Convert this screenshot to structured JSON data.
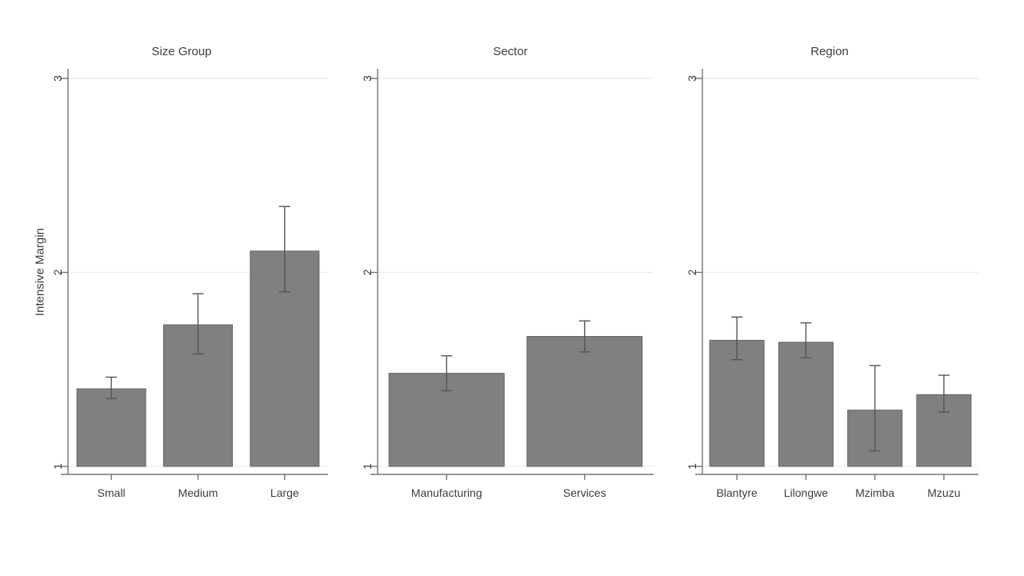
{
  "page": {
    "background": "#ffffff"
  },
  "chart_data": [
    {
      "type": "bar",
      "title": "Size Group",
      "categories": [
        "Small",
        "Medium",
        "Large"
      ],
      "values": [
        1.4,
        1.73,
        2.11
      ],
      "ci_low": [
        1.35,
        1.58,
        1.9
      ],
      "ci_high": [
        1.46,
        1.89,
        2.34
      ],
      "ylabel": "Intensive Margin",
      "ylim": [
        1,
        3
      ],
      "yticks": [
        1,
        2,
        3
      ],
      "grid": true,
      "legend": "none"
    },
    {
      "type": "bar",
      "title": "Sector",
      "categories": [
        "Manufacturing",
        "Services"
      ],
      "values": [
        1.48,
        1.67
      ],
      "ci_low": [
        1.39,
        1.59
      ],
      "ci_high": [
        1.57,
        1.75
      ],
      "ylabel": "",
      "ylim": [
        1,
        3
      ],
      "yticks": [
        1,
        2,
        3
      ],
      "grid": true,
      "legend": "none"
    },
    {
      "type": "bar",
      "title": "Region",
      "categories": [
        "Blantyre",
        "Lilongwe",
        "Mzimba",
        "Mzuzu"
      ],
      "values": [
        1.65,
        1.64,
        1.29,
        1.37
      ],
      "ci_low": [
        1.55,
        1.56,
        1.08,
        1.28
      ],
      "ci_high": [
        1.77,
        1.74,
        1.52,
        1.47
      ],
      "ylabel": "",
      "ylim": [
        1,
        3
      ],
      "yticks": [
        1,
        2,
        3
      ],
      "grid": true,
      "legend": "none"
    }
  ],
  "colors": {
    "bar_fill": "#808080",
    "bar_stroke": "#646464",
    "error_bar": "#555555",
    "grid_line": "#ebebeb",
    "axis_line": "#757575",
    "text": "#3d3d3d"
  }
}
